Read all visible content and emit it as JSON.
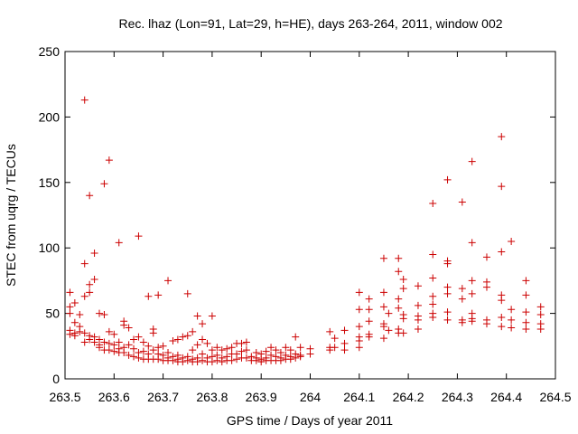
{
  "chart_data": {
    "type": "scatter",
    "title": "Rec. lhaz (Lon=91, Lat=29, h=HE), days 263-264, 2011, window 002",
    "xlabel": "GPS time / Days of year 2011",
    "ylabel": "STEC from uqrg / TECUs",
    "xlim": [
      263.5,
      264.5
    ],
    "ylim": [
      0,
      250
    ],
    "xticks": [
      "263.5",
      "263.6",
      "263.7",
      "263.8",
      "263.9",
      "264",
      "264.1",
      "264.2",
      "264.3",
      "264.4",
      "264.5"
    ],
    "yticks": [
      "0",
      "50",
      "100",
      "150",
      "200",
      "250"
    ],
    "marker": "+",
    "color": "#cc0000",
    "grid": false,
    "legend": "none",
    "points": [
      [
        263.51,
        66
      ],
      [
        263.51,
        55
      ],
      [
        263.51,
        50
      ],
      [
        263.51,
        37
      ],
      [
        263.51,
        34
      ],
      [
        263.52,
        58
      ],
      [
        263.52,
        43
      ],
      [
        263.52,
        35
      ],
      [
        263.52,
        33
      ],
      [
        263.53,
        49
      ],
      [
        263.53,
        40
      ],
      [
        263.53,
        36
      ],
      [
        263.54,
        213
      ],
      [
        263.54,
        88
      ],
      [
        263.54,
        63
      ],
      [
        263.54,
        35
      ],
      [
        263.54,
        28
      ],
      [
        263.55,
        140
      ],
      [
        263.55,
        72
      ],
      [
        263.55,
        66
      ],
      [
        263.55,
        33
      ],
      [
        263.55,
        30
      ],
      [
        263.56,
        96
      ],
      [
        263.56,
        76
      ],
      [
        263.56,
        32
      ],
      [
        263.56,
        28
      ],
      [
        263.57,
        50
      ],
      [
        263.57,
        30
      ],
      [
        263.57,
        26
      ],
      [
        263.57,
        24
      ],
      [
        263.58,
        149
      ],
      [
        263.58,
        49
      ],
      [
        263.58,
        28
      ],
      [
        263.58,
        22
      ],
      [
        263.59,
        167
      ],
      [
        263.59,
        36
      ],
      [
        263.59,
        27
      ],
      [
        263.59,
        22
      ],
      [
        263.6,
        34
      ],
      [
        263.6,
        26
      ],
      [
        263.6,
        21
      ],
      [
        263.61,
        104
      ],
      [
        263.61,
        28
      ],
      [
        263.61,
        23
      ],
      [
        263.61,
        20
      ],
      [
        263.62,
        44
      ],
      [
        263.62,
        41
      ],
      [
        263.62,
        24
      ],
      [
        263.62,
        20
      ],
      [
        263.63,
        39
      ],
      [
        263.63,
        26
      ],
      [
        263.63,
        18
      ],
      [
        263.64,
        30
      ],
      [
        263.64,
        23
      ],
      [
        263.64,
        17
      ],
      [
        263.65,
        109
      ],
      [
        263.65,
        32
      ],
      [
        263.65,
        20
      ],
      [
        263.65,
        16
      ],
      [
        263.66,
        28
      ],
      [
        263.66,
        21
      ],
      [
        263.66,
        15
      ],
      [
        263.67,
        63
      ],
      [
        263.67,
        25
      ],
      [
        263.67,
        19
      ],
      [
        263.67,
        15
      ],
      [
        263.68,
        38
      ],
      [
        263.68,
        35
      ],
      [
        263.68,
        22
      ],
      [
        263.68,
        15
      ],
      [
        263.69,
        64
      ],
      [
        263.69,
        24
      ],
      [
        263.69,
        19
      ],
      [
        263.69,
        15
      ],
      [
        263.7,
        25
      ],
      [
        263.7,
        18
      ],
      [
        263.7,
        14
      ],
      [
        263.71,
        75
      ],
      [
        263.71,
        20
      ],
      [
        263.71,
        16
      ],
      [
        263.71,
        14
      ],
      [
        263.72,
        29
      ],
      [
        263.72,
        17
      ],
      [
        263.72,
        14
      ],
      [
        263.73,
        30
      ],
      [
        263.73,
        18
      ],
      [
        263.73,
        15
      ],
      [
        263.73,
        13
      ],
      [
        263.74,
        32
      ],
      [
        263.74,
        16
      ],
      [
        263.74,
        13
      ],
      [
        263.75,
        65
      ],
      [
        263.75,
        33
      ],
      [
        263.75,
        17
      ],
      [
        263.75,
        14
      ],
      [
        263.76,
        36
      ],
      [
        263.76,
        22
      ],
      [
        263.76,
        15
      ],
      [
        263.76,
        13
      ],
      [
        263.77,
        48
      ],
      [
        263.77,
        26
      ],
      [
        263.77,
        16
      ],
      [
        263.77,
        13
      ],
      [
        263.78,
        42
      ],
      [
        263.78,
        30
      ],
      [
        263.78,
        19
      ],
      [
        263.78,
        14
      ],
      [
        263.79,
        27
      ],
      [
        263.79,
        16
      ],
      [
        263.79,
        13
      ],
      [
        263.8,
        48
      ],
      [
        263.8,
        22
      ],
      [
        263.8,
        17
      ],
      [
        263.8,
        13
      ],
      [
        263.81,
        24
      ],
      [
        263.81,
        18
      ],
      [
        263.81,
        14
      ],
      [
        263.82,
        22
      ],
      [
        263.82,
        16
      ],
      [
        263.82,
        13
      ],
      [
        263.83,
        23
      ],
      [
        263.83,
        17
      ],
      [
        263.83,
        14
      ],
      [
        263.84,
        24
      ],
      [
        263.84,
        19
      ],
      [
        263.84,
        14
      ],
      [
        263.85,
        27
      ],
      [
        263.85,
        19
      ],
      [
        263.85,
        15
      ],
      [
        263.86,
        27
      ],
      [
        263.86,
        21
      ],
      [
        263.86,
        16
      ],
      [
        263.87,
        28
      ],
      [
        263.87,
        22
      ],
      [
        263.87,
        16
      ],
      [
        263.88,
        17
      ],
      [
        263.88,
        14
      ],
      [
        263.89,
        20
      ],
      [
        263.89,
        16
      ],
      [
        263.89,
        14
      ],
      [
        263.9,
        19
      ],
      [
        263.9,
        15
      ],
      [
        263.9,
        13
      ],
      [
        263.91,
        21
      ],
      [
        263.91,
        16
      ],
      [
        263.91,
        14
      ],
      [
        263.92,
        24
      ],
      [
        263.92,
        18
      ],
      [
        263.92,
        14
      ],
      [
        263.93,
        22
      ],
      [
        263.93,
        17
      ],
      [
        263.93,
        14
      ],
      [
        263.94,
        20
      ],
      [
        263.94,
        16
      ],
      [
        263.94,
        14
      ],
      [
        263.95,
        24
      ],
      [
        263.95,
        18
      ],
      [
        263.95,
        15
      ],
      [
        263.96,
        22
      ],
      [
        263.96,
        17
      ],
      [
        263.96,
        15
      ],
      [
        263.97,
        32
      ],
      [
        263.97,
        19
      ],
      [
        263.97,
        16
      ],
      [
        263.98,
        24
      ],
      [
        263.98,
        18
      ],
      [
        263.98,
        17
      ],
      [
        264.0,
        23
      ],
      [
        264.0,
        19
      ],
      [
        264.04,
        36
      ],
      [
        264.04,
        24
      ],
      [
        264.04,
        22
      ],
      [
        264.05,
        31
      ],
      [
        264.05,
        24
      ],
      [
        264.07,
        37
      ],
      [
        264.07,
        27
      ],
      [
        264.07,
        22
      ],
      [
        264.1,
        66
      ],
      [
        264.1,
        53
      ],
      [
        264.1,
        40
      ],
      [
        264.1,
        32
      ],
      [
        264.1,
        29
      ],
      [
        264.1,
        24
      ],
      [
        264.12,
        61
      ],
      [
        264.12,
        53
      ],
      [
        264.12,
        44
      ],
      [
        264.12,
        34
      ],
      [
        264.12,
        32
      ],
      [
        264.15,
        92
      ],
      [
        264.15,
        66
      ],
      [
        264.15,
        55
      ],
      [
        264.15,
        42
      ],
      [
        264.15,
        40
      ],
      [
        264.15,
        31
      ],
      [
        264.16,
        50
      ],
      [
        264.16,
        37
      ],
      [
        264.18,
        92
      ],
      [
        264.18,
        82
      ],
      [
        264.18,
        61
      ],
      [
        264.18,
        54
      ],
      [
        264.18,
        38
      ],
      [
        264.18,
        35
      ],
      [
        264.19,
        76
      ],
      [
        264.19,
        69
      ],
      [
        264.19,
        49
      ],
      [
        264.19,
        46
      ],
      [
        264.19,
        35
      ],
      [
        264.22,
        71
      ],
      [
        264.22,
        56
      ],
      [
        264.22,
        48
      ],
      [
        264.22,
        45
      ],
      [
        264.22,
        38
      ],
      [
        264.25,
        134
      ],
      [
        264.25,
        95
      ],
      [
        264.25,
        77
      ],
      [
        264.25,
        63
      ],
      [
        264.25,
        57
      ],
      [
        264.25,
        50
      ],
      [
        264.25,
        47
      ],
      [
        264.28,
        152
      ],
      [
        264.28,
        90
      ],
      [
        264.28,
        88
      ],
      [
        264.28,
        70
      ],
      [
        264.28,
        65
      ],
      [
        264.28,
        51
      ],
      [
        264.28,
        45
      ],
      [
        264.31,
        135
      ],
      [
        264.31,
        69
      ],
      [
        264.31,
        61
      ],
      [
        264.31,
        45
      ],
      [
        264.31,
        43
      ],
      [
        264.33,
        166
      ],
      [
        264.33,
        104
      ],
      [
        264.33,
        75
      ],
      [
        264.33,
        65
      ],
      [
        264.33,
        50
      ],
      [
        264.33,
        46
      ],
      [
        264.33,
        44
      ],
      [
        264.36,
        93
      ],
      [
        264.36,
        74
      ],
      [
        264.36,
        70
      ],
      [
        264.36,
        45
      ],
      [
        264.36,
        42
      ],
      [
        264.39,
        185
      ],
      [
        264.39,
        147
      ],
      [
        264.39,
        97
      ],
      [
        264.39,
        64
      ],
      [
        264.39,
        60
      ],
      [
        264.39,
        47
      ],
      [
        264.39,
        40
      ],
      [
        264.41,
        105
      ],
      [
        264.41,
        53
      ],
      [
        264.41,
        45
      ],
      [
        264.41,
        39
      ],
      [
        264.44,
        75
      ],
      [
        264.44,
        64
      ],
      [
        264.44,
        51
      ],
      [
        264.44,
        43
      ],
      [
        264.44,
        38
      ],
      [
        264.47,
        55
      ],
      [
        264.47,
        49
      ],
      [
        264.47,
        42
      ],
      [
        264.47,
        38
      ]
    ]
  }
}
